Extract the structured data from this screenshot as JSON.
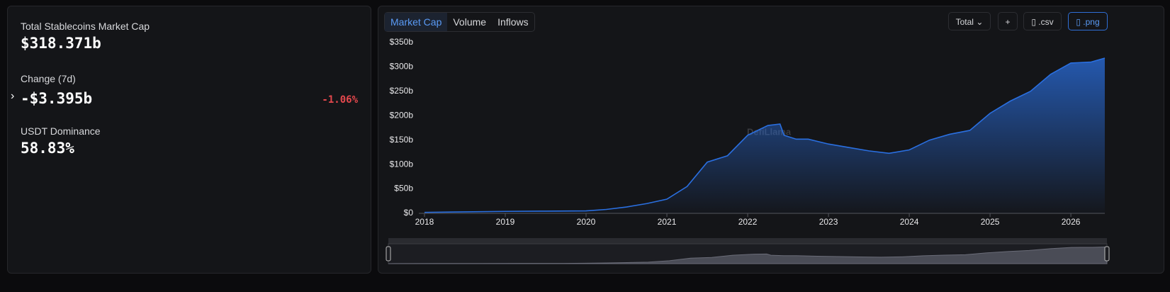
{
  "stats": {
    "items": [
      {
        "label": "Total Stablecoins Market Cap",
        "value": "$318.371b"
      },
      {
        "label": "Change (7d)",
        "value": "-$3.395b",
        "change": "-1.06%"
      },
      {
        "label": "USDT Dominance",
        "value": "58.83%"
      }
    ]
  },
  "tabs": [
    "Market Cap",
    "Volume",
    "Inflows"
  ],
  "controls": {
    "dropdown": "Total",
    "buttons": [
      "+",
      ".csv",
      ".png"
    ]
  },
  "chart_data": {
    "type": "area",
    "watermark": "DefiLlama",
    "color": "#2a6fe0",
    "x": [
      2018.0,
      2018.5,
      2019.0,
      2019.5,
      2020.0,
      2020.25,
      2020.5,
      2020.75,
      2021.0,
      2021.25,
      2021.5,
      2021.75,
      2022.0,
      2022.25,
      2022.4,
      2022.45,
      2022.6,
      2022.75,
      2023.0,
      2023.25,
      2023.5,
      2023.75,
      2024.0,
      2024.25,
      2024.5,
      2024.75,
      2025.0,
      2025.25,
      2025.5,
      2025.75,
      2026.0,
      2026.25,
      2026.42
    ],
    "values": [
      2,
      3,
      4,
      4.5,
      5,
      8,
      13,
      20,
      29,
      55,
      105,
      118,
      160,
      180,
      183,
      160,
      152,
      152,
      142,
      135,
      128,
      123,
      130,
      150,
      162,
      170,
      205,
      230,
      250,
      285,
      308,
      310,
      318
    ],
    "xlim": [
      2017.93,
      2026.42
    ],
    "xticks": [
      2018,
      2019,
      2020,
      2021,
      2022,
      2023,
      2024,
      2025,
      2026
    ],
    "ylim": [
      0,
      350
    ],
    "yticks": [
      {
        "value": 0,
        "label": "$0"
      },
      {
        "value": 50,
        "label": "$50b"
      },
      {
        "value": 100,
        "label": "$100b"
      },
      {
        "value": 150,
        "label": "$150b"
      },
      {
        "value": 200,
        "label": "$200b"
      },
      {
        "value": 250,
        "label": "$250b"
      },
      {
        "value": 300,
        "label": "$300b"
      },
      {
        "value": 350,
        "label": "$350b"
      }
    ]
  }
}
